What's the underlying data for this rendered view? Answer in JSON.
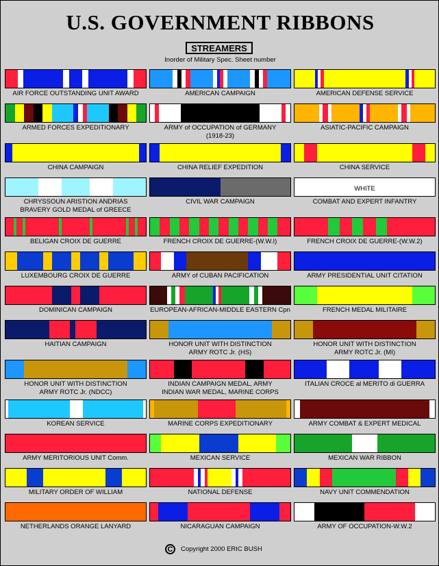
{
  "page": {
    "title": "U.S. GOVERNMENT RIBBONS",
    "subtitle": "STREAMERS",
    "note": "Inorder of Military Spec. Sheet number",
    "copyright_symbol": "C",
    "copyright": "Copyright 2000 ERIC BUSH"
  },
  "colors": {
    "background": "#cfcfcf",
    "ultramarine": "#0a1ee6",
    "golden_yellow": "#ffff00",
    "scarlet": "#ff1e3c",
    "white": "#ffffff",
    "black": "#000000",
    "green": "#22c93a",
    "orange": "#ff6a00"
  },
  "ribbons": [
    {
      "label": "",
      "caption": [
        "AIR FORCE OUTSTANDING UNIT AWARD"
      ],
      "stripes": [
        [
          "#ff1e3c",
          8
        ],
        [
          "#ffffff",
          4
        ],
        [
          "#0a1ee6",
          26
        ],
        [
          "#ffffff",
          4
        ],
        [
          "#0a1ee6",
          9
        ],
        [
          "#ffffff",
          4
        ],
        [
          "#0a1ee6",
          26
        ],
        [
          "#ffffff",
          4
        ],
        [
          "#ff1e3c",
          8
        ]
      ]
    },
    {
      "label": "",
      "caption": [
        "AMERICAN CAMPAIGN"
      ],
      "stripes": [
        [
          "#1e96ff",
          16
        ],
        [
          "#ffffff",
          3
        ],
        [
          "#000000",
          3
        ],
        [
          "#ffffff",
          3
        ],
        [
          "#ff1e3c",
          3
        ],
        [
          "#1e96ff",
          16
        ],
        [
          "#ffffff",
          3
        ],
        [
          "#0a1ee6",
          2
        ],
        [
          "#ff1e3c",
          2
        ],
        [
          "#ffffff",
          3
        ],
        [
          "#1e96ff",
          16
        ],
        [
          "#ffffff",
          3
        ],
        [
          "#000000",
          3
        ],
        [
          "#ffffff",
          3
        ],
        [
          "#ff1e3c",
          3
        ],
        [
          "#1e96ff",
          16
        ]
      ]
    },
    {
      "label": "",
      "caption": [
        "AMERICAN DEFENSE SERVICE"
      ],
      "stripes": [
        [
          "#ffff00",
          14
        ],
        [
          "#0a1ee6",
          2
        ],
        [
          "#ffffff",
          2
        ],
        [
          "#ff1e3c",
          2
        ],
        [
          "#ffff00",
          56
        ],
        [
          "#0a1ee6",
          2
        ],
        [
          "#ffffff",
          2
        ],
        [
          "#ff1e3c",
          2
        ],
        [
          "#ffff00",
          14
        ]
      ]
    },
    {
      "label": "",
      "caption": [
        "ARMED FORCES EXPEDITIONARY"
      ],
      "stripes": [
        [
          "#16a52a",
          6
        ],
        [
          "#ffff00",
          6
        ],
        [
          "#6b0a0a",
          6
        ],
        [
          "#000000",
          6
        ],
        [
          "#ffff00",
          6
        ],
        [
          "#1ec8ff",
          14
        ],
        [
          "#0a1ee6",
          3
        ],
        [
          "#ffffff",
          3
        ],
        [
          "#ff1e3c",
          3
        ],
        [
          "#1ec8ff",
          14
        ],
        [
          "#000000",
          6
        ],
        [
          "#6b0a0a",
          6
        ],
        [
          "#ffff00",
          6
        ],
        [
          "#16a52a",
          6
        ]
      ]
    },
    {
      "label": "",
      "caption": [
        "ARMY of OCCUPATION of GERMANY",
        "(1918-23)"
      ],
      "stripes": [
        [
          "#ffffff",
          3
        ],
        [
          "#ff1e3c",
          3
        ],
        [
          "#ffffff",
          14
        ],
        [
          "#000000",
          52
        ],
        [
          "#ffffff",
          14
        ],
        [
          "#ff1e3c",
          3
        ],
        [
          "#ffffff",
          3
        ]
      ]
    },
    {
      "label": "",
      "caption": [
        "ASIATIC-PACIFIC CAMPAIGN"
      ],
      "stripes": [
        [
          "#ffb400",
          14
        ],
        [
          "#ffffff",
          2
        ],
        [
          "#ff1e3c",
          3
        ],
        [
          "#ffffff",
          2
        ],
        [
          "#ffb400",
          16
        ],
        [
          "#0a1ee6",
          2
        ],
        [
          "#ffffff",
          2
        ],
        [
          "#ff1e3c",
          2
        ],
        [
          "#ffb400",
          16
        ],
        [
          "#ffffff",
          2
        ],
        [
          "#ff1e3c",
          3
        ],
        [
          "#ffffff",
          2
        ],
        [
          "#ffb400",
          14
        ]
      ]
    },
    {
      "label": "",
      "caption": [
        "CHINA CAMPAIGN"
      ],
      "stripes": [
        [
          "#0a1ee6",
          5
        ],
        [
          "#ffff00",
          90
        ],
        [
          "#0a1ee6",
          5
        ]
      ]
    },
    {
      "label": "",
      "caption": [
        "CHINA RELIEF EXPEDITION"
      ],
      "stripes": [
        [
          "#0a1ee6",
          7
        ],
        [
          "#ffff00",
          86
        ],
        [
          "#0a1ee6",
          7
        ]
      ]
    },
    {
      "label": "",
      "caption": [
        "CHINA SERVICE"
      ],
      "stripes": [
        [
          "#ffff00",
          7
        ],
        [
          "#ff1e3c",
          9
        ],
        [
          "#ffff00",
          68
        ],
        [
          "#ff1e3c",
          9
        ],
        [
          "#ffff00",
          7
        ]
      ]
    },
    {
      "label": "",
      "caption": [
        "CHRYSSOUN ARISTION ANDRIAS",
        "BRAVERY GOLD MEDAL of GREECE"
      ],
      "stripes": [
        [
          "#9ff5ff",
          23
        ],
        [
          "#ffffff",
          16
        ],
        [
          "#9ff5ff",
          20
        ],
        [
          "#ffffff",
          16
        ],
        [
          "#9ff5ff",
          23
        ]
      ]
    },
    {
      "label": "",
      "caption": [
        "CIVIL WAR CAMPAIGN"
      ],
      "stripes": [
        [
          "#0b1a6b",
          50
        ],
        [
          "#6b6b6b",
          50
        ]
      ]
    },
    {
      "label": "WHITE",
      "caption": [
        "COMBAT AND EXPERT INFANTRY"
      ],
      "stripes": [
        [
          "#ffffff",
          100
        ]
      ]
    },
    {
      "label": "",
      "caption": [
        "BELIGAN CROIX DE GUERRE"
      ],
      "stripes": [
        [
          "#ff1e3c",
          6
        ],
        [
          "#22c93a",
          2
        ],
        [
          "#ff1e3c",
          4
        ],
        [
          "#22c93a",
          2
        ],
        [
          "#ff1e3c",
          24
        ],
        [
          "#22c93a",
          2
        ],
        [
          "#ff1e3c",
          20
        ],
        [
          "#22c93a",
          2
        ],
        [
          "#ff1e3c",
          24
        ],
        [
          "#22c93a",
          2
        ],
        [
          "#ff1e3c",
          4
        ],
        [
          "#22c93a",
          2
        ],
        [
          "#ff1e3c",
          6
        ]
      ]
    },
    {
      "label": "",
      "caption": [
        "FRENCH CROIX DE GUERRE-(W.W.I)"
      ],
      "stripes": [
        [
          "#22c93a",
          7
        ],
        [
          "#ff1e3c",
          7
        ],
        [
          "#22c93a",
          7
        ],
        [
          "#ff1e3c",
          7
        ],
        [
          "#22c93a",
          7
        ],
        [
          "#ff1e3c",
          7
        ],
        [
          "#22c93a",
          7
        ],
        [
          "#ff1e3c",
          7
        ],
        [
          "#22c93a",
          7
        ],
        [
          "#ff1e3c",
          7
        ],
        [
          "#22c93a",
          7
        ],
        [
          "#ff1e3c",
          7
        ],
        [
          "#22c93a",
          7
        ],
        [
          "#ff1e3c",
          9
        ]
      ]
    },
    {
      "label": "",
      "caption": [
        "FRENCH CROIX DE GUERRE-(W.W.2)"
      ],
      "stripes": [
        [
          "#ff1e3c",
          24
        ],
        [
          "#22c93a",
          8
        ],
        [
          "#ff1e3c",
          9
        ],
        [
          "#22c93a",
          8
        ],
        [
          "#ff1e3c",
          9
        ],
        [
          "#22c93a",
          8
        ],
        [
          "#ff1e3c",
          34
        ]
      ]
    },
    {
      "label": "",
      "caption": [
        "LUXEMBOURG CROIX DE GUERRE"
      ],
      "stripes": [
        [
          "#ffcc00",
          8
        ],
        [
          "#0a3cd0",
          17
        ],
        [
          "#ffcc00",
          6
        ],
        [
          "#0a3cd0",
          13
        ],
        [
          "#ffcc00",
          6
        ],
        [
          "#0a3cd0",
          13
        ],
        [
          "#ffcc00",
          6
        ],
        [
          "#0a3cd0",
          17
        ],
        [
          "#ffcc00",
          8
        ]
      ]
    },
    {
      "label": "",
      "caption": [
        "ARMY of CUBAN PACIFICATION"
      ],
      "stripes": [
        [
          "#ff1e3c",
          8
        ],
        [
          "#ffffff",
          9
        ],
        [
          "#0a1ee6",
          9
        ],
        [
          "#6b3a0a",
          44
        ],
        [
          "#0a1ee6",
          9
        ],
        [
          "#ffffff",
          12
        ],
        [
          "#ff1e3c",
          9
        ]
      ]
    },
    {
      "label": "",
      "caption": [
        "ARMY PRESIDENTIAL UNIT CITATION"
      ],
      "stripes": [
        [
          "#0a1ee6",
          100
        ]
      ]
    },
    {
      "label": "",
      "caption": [
        "DOMINICAN CAMPAIGN"
      ],
      "stripes": [
        [
          "#ff1e3c",
          33
        ],
        [
          "#0b1a6b",
          14
        ],
        [
          "#ff1e3c",
          6
        ],
        [
          "#0b1a6b",
          14
        ],
        [
          "#ff1e3c",
          33
        ]
      ]
    },
    {
      "label": "",
      "caption": [
        "EUROPEAN-AFRICAN-MIDDLE EASTERN Cpn"
      ],
      "stripes": [
        [
          "#3b0a0a",
          12
        ],
        [
          "#ffffff",
          3
        ],
        [
          "#16a52a",
          3
        ],
        [
          "#ffffff",
          3
        ],
        [
          "#ff1e3c",
          4
        ],
        [
          "#16a52a",
          20
        ],
        [
          "#0a1ee6",
          2
        ],
        [
          "#ffffff",
          2
        ],
        [
          "#ff1e3c",
          2
        ],
        [
          "#16a52a",
          20
        ],
        [
          "#ffffff",
          3
        ],
        [
          "#16a52a",
          3
        ],
        [
          "#ffffff",
          3
        ],
        [
          "#3b0a0a",
          20
        ]
      ]
    },
    {
      "label": "",
      "caption": [
        "FRENCH MEDAL MILITAIRE"
      ],
      "stripes": [
        [
          "#5aff3c",
          16
        ],
        [
          "#ffff00",
          68
        ],
        [
          "#5aff3c",
          16
        ]
      ]
    },
    {
      "label": "",
      "caption": [
        "HAITIAN CAMPAIGN"
      ],
      "stripes": [
        [
          "#0b1a6b",
          31
        ],
        [
          "#ff1e3c",
          15
        ],
        [
          "#0b1a6b",
          4
        ],
        [
          "#ff1e3c",
          15
        ],
        [
          "#0b1a6b",
          35
        ]
      ]
    },
    {
      "label": "",
      "caption": [
        "HONOR UNIT WITH DISTINCTION",
        "ARMY ROTC Jr. (HS)"
      ],
      "stripes": [
        [
          "#c8960a",
          13
        ],
        [
          "#1e96ff",
          74
        ],
        [
          "#c8960a",
          13
        ]
      ]
    },
    {
      "label": "",
      "caption": [
        "HONOR UNIT WITH DISTINCTION",
        "ARMY ROTC Jr. (MI)"
      ],
      "stripes": [
        [
          "#c8960a",
          13
        ],
        [
          "#8b0a0a",
          74
        ],
        [
          "#c8960a",
          13
        ]
      ]
    },
    {
      "label": "",
      "caption": [
        "HONOR UNIT WITH DISTINCTION",
        "ARMY ROTC Jr. (NDCC)"
      ],
      "stripes": [
        [
          "#1e96ff",
          13
        ],
        [
          "#c8960a",
          74
        ],
        [
          "#1e96ff",
          13
        ]
      ]
    },
    {
      "label": "",
      "caption": [
        "INDIAN CAMPAIGN MEDAL, ARMY",
        "INDIAN WAR MEDAL, MARINE CORPS"
      ],
      "stripes": [
        [
          "#ff1e3c",
          17
        ],
        [
          "#000000",
          13
        ],
        [
          "#ff1e3c",
          38
        ],
        [
          "#000000",
          13
        ],
        [
          "#ff1e3c",
          19
        ]
      ]
    },
    {
      "label": "",
      "caption": [
        "ITALIAN CROCE al MERITO di GUERRA"
      ],
      "stripes": [
        [
          "#0a1ee6",
          23
        ],
        [
          "#ffffff",
          16
        ],
        [
          "#0a1ee6",
          21
        ],
        [
          "#ffffff",
          16
        ],
        [
          "#0a1ee6",
          24
        ]
      ]
    },
    {
      "label": "",
      "caption": [
        "KOREAN SERVICE"
      ],
      "stripes": [
        [
          "#ffffff",
          2
        ],
        [
          "#1ec8ff",
          44
        ],
        [
          "#ffffff",
          9
        ],
        [
          "#1ec8ff",
          43
        ],
        [
          "#ffffff",
          2
        ]
      ]
    },
    {
      "label": "",
      "caption": [
        "MARINE CORPS EXPEDITIONARY"
      ],
      "stripes": [
        [
          "#ffb400",
          3
        ],
        [
          "#c8960a",
          31
        ],
        [
          "#ff1e3c",
          27
        ],
        [
          "#c8960a",
          36
        ],
        [
          "#ffb400",
          3
        ]
      ]
    },
    {
      "label": "",
      "caption": [
        "ARMY COMBAT & EXPERT MEDICAL"
      ],
      "stripes": [
        [
          "#ffffff",
          4
        ],
        [
          "#6b0a0a",
          92
        ],
        [
          "#ffffff",
          4
        ]
      ]
    },
    {
      "label": "",
      "caption": [
        "ARMY MERITORIOUS UNIT Comm."
      ],
      "stripes": [
        [
          "#ff1e3c",
          100
        ]
      ]
    },
    {
      "label": "",
      "caption": [
        "MEXICAN SERVICE"
      ],
      "stripes": [
        [
          "#5aff3c",
          8
        ],
        [
          "#ffff00",
          27
        ],
        [
          "#0a3cd0",
          28
        ],
        [
          "#ffff00",
          27
        ],
        [
          "#5aff3c",
          10
        ]
      ]
    },
    {
      "label": "",
      "caption": [
        "MEXICAN WAR RIBBON"
      ],
      "stripes": [
        [
          "#16a52a",
          41
        ],
        [
          "#ffffff",
          18
        ],
        [
          "#16a52a",
          41
        ]
      ]
    },
    {
      "label": "",
      "caption": [
        "MILITARY ORDER OF WILLIAM"
      ],
      "stripes": [
        [
          "#ffff00",
          15
        ],
        [
          "#0a3cd0",
          12
        ],
        [
          "#ffff00",
          44
        ],
        [
          "#0a3cd0",
          12
        ],
        [
          "#ffff00",
          17
        ]
      ]
    },
    {
      "label": "",
      "caption": [
        "NATIONAL DEFENSE"
      ],
      "stripes": [
        [
          "#ff1e3c",
          31
        ],
        [
          "#ffffff",
          3
        ],
        [
          "#0a1ee6",
          2
        ],
        [
          "#ffffff",
          3
        ],
        [
          "#ff1e3c",
          2
        ],
        [
          "#ffff00",
          17
        ],
        [
          "#ffffff",
          3
        ],
        [
          "#0a1ee6",
          2
        ],
        [
          "#ffffff",
          3
        ],
        [
          "#ff1e3c",
          34
        ]
      ]
    },
    {
      "label": "",
      "caption": [
        "NAVY UNIT COMMENDATION"
      ],
      "stripes": [
        [
          "#0a3cd0",
          9
        ],
        [
          "#ffff00",
          9
        ],
        [
          "#ff1e3c",
          9
        ],
        [
          "#22c93a",
          45
        ],
        [
          "#ff1e3c",
          9
        ],
        [
          "#ffff00",
          9
        ],
        [
          "#0a3cd0",
          10
        ]
      ]
    },
    {
      "label": "",
      "caption": [
        "NETHERLANDS ORANGE LANYARD"
      ],
      "stripes": [
        [
          "#ff6a00",
          100
        ]
      ]
    },
    {
      "label": "",
      "caption": [
        "NICARAGUAN CAMPAIGN"
      ],
      "stripes": [
        [
          "#ff1e3c",
          6
        ],
        [
          "#0a1ee6",
          21
        ],
        [
          "#ff1e3c",
          44
        ],
        [
          "#0a1ee6",
          21
        ],
        [
          "#ff1e3c",
          8
        ]
      ]
    },
    {
      "label": "",
      "caption": [
        "ARMY OF OCCUPATION-W.W.2"
      ],
      "stripes": [
        [
          "#ffffff",
          14
        ],
        [
          "#000000",
          36
        ],
        [
          "#ff1e3c",
          36
        ],
        [
          "#ffffff",
          14
        ]
      ]
    }
  ]
}
